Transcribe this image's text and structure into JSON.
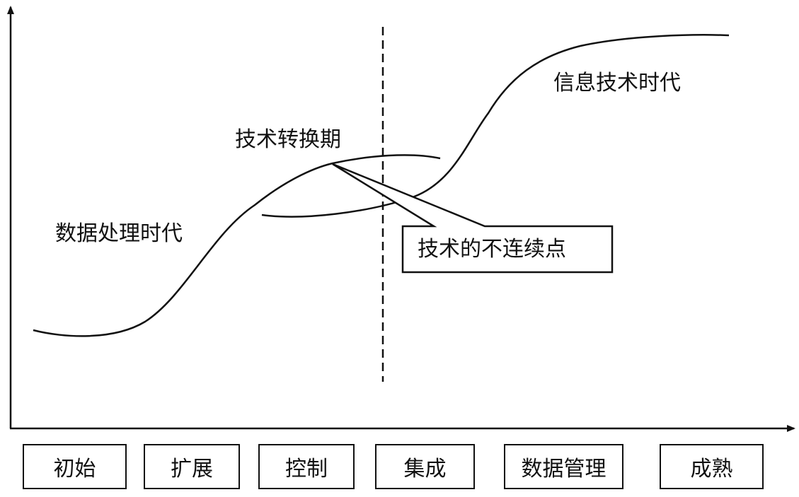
{
  "labels": {
    "era_data_processing": "数据处理时代",
    "transition_period": "技术转换期",
    "era_information_tech": "信息技术时代",
    "discontinuity_callout": "技术的不连续点"
  },
  "stages": [
    "初始",
    "扩展",
    "控制",
    "集成",
    "数据管理",
    "成熟"
  ]
}
